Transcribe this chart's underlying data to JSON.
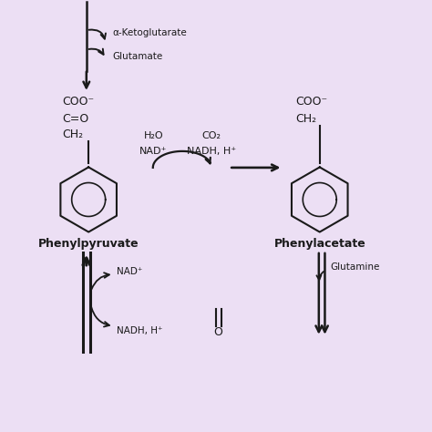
{
  "background_color": "#ecdff4",
  "text_color": "#1a1a1a",
  "compounds": {
    "phenylpyruvate_label": "Phenylpyruvate",
    "phenylacetate_label": "Phenylacetate"
  },
  "annotations": {
    "alpha_ketoglutarate": "α-Ketoglutarate",
    "glutamate": "Glutamate",
    "h2o": "H₂O",
    "nad_plus_top": "NAD⁺",
    "co2": "CO₂",
    "nadh_h_top": "NADH, H⁺",
    "nad_plus_bottom": "NAD⁺",
    "nadh_h_bottom": "NADH, H⁺",
    "glutamine": "Glutamine"
  },
  "coo_minus": "COO⁻",
  "ch2": "CH₂",
  "c_equal_o": "C=O",
  "o_double": "O"
}
